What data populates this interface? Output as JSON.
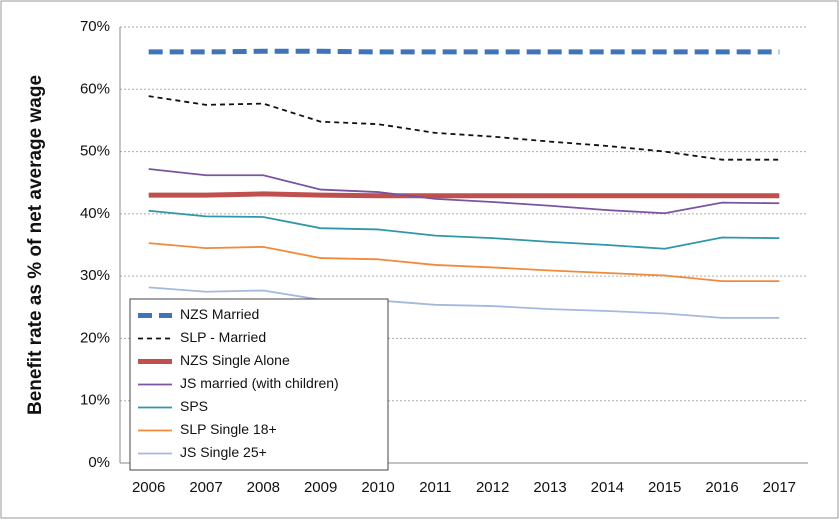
{
  "chart_data": {
    "type": "line",
    "y_label": "Benefit rate as % of net average wage",
    "categories": [
      "2006",
      "2007",
      "2008",
      "2009",
      "2010",
      "2011",
      "2012",
      "2013",
      "2014",
      "2015",
      "2016",
      "2017"
    ],
    "ylim": [
      0,
      70
    ],
    "yticks": [
      {
        "value": 0,
        "label": "0%"
      },
      {
        "value": 10,
        "label": "10%"
      },
      {
        "value": 20,
        "label": "20%"
      },
      {
        "value": 30,
        "label": "30%"
      },
      {
        "value": 40,
        "label": "40%"
      },
      {
        "value": 50,
        "label": "50%"
      },
      {
        "value": 60,
        "label": "60%"
      },
      {
        "value": 70,
        "label": "70%"
      }
    ],
    "grid": true,
    "legend": "lower left",
    "series": [
      {
        "name": "NZS Married",
        "color": "#3f74b8",
        "style": "dashed",
        "line_width": 5,
        "values": [
          66,
          66,
          66.1,
          66.1,
          66,
          66,
          66,
          66,
          66,
          66,
          66,
          66
        ]
      },
      {
        "name": "SLP - Married",
        "color": "#111111",
        "style": "dashed",
        "line_width": 1.8,
        "values": [
          58.9,
          57.5,
          57.7,
          54.8,
          54.4,
          53,
          52.4,
          51.6,
          50.9,
          50,
          48.7,
          48.7
        ]
      },
      {
        "name": "NZS Single Alone",
        "color": "#c0504d",
        "style": "solid",
        "line_width": 5,
        "values": [
          43,
          43,
          43.2,
          43,
          42.9,
          42.9,
          42.9,
          42.9,
          42.9,
          42.9,
          42.9,
          42.9
        ]
      },
      {
        "name": "JS married (with children)",
        "color": "#7a54a0",
        "style": "solid",
        "line_width": 1.8,
        "values": [
          47.2,
          46.2,
          46.2,
          43.9,
          43.5,
          42.4,
          41.9,
          41.3,
          40.6,
          40.1,
          41.8,
          41.7
        ]
      },
      {
        "name": "SPS",
        "color": "#2f97a8",
        "style": "solid",
        "line_width": 1.8,
        "values": [
          40.5,
          39.6,
          39.5,
          37.7,
          37.5,
          36.5,
          36.1,
          35.5,
          35,
          34.4,
          36.2,
          36.1
        ]
      },
      {
        "name": "SLP Single 18+",
        "color": "#f08a3c",
        "style": "solid",
        "line_width": 1.8,
        "values": [
          35.3,
          34.5,
          34.7,
          32.9,
          32.7,
          31.8,
          31.4,
          30.9,
          30.5,
          30.1,
          29.2,
          29.2
        ]
      },
      {
        "name": "JS Single 25+",
        "color": "#a4b9e0",
        "style": "solid",
        "line_width": 1.8,
        "values": [
          28.2,
          27.5,
          27.7,
          26.2,
          26.1,
          25.4,
          25.2,
          24.7,
          24.4,
          24,
          23.3,
          23.3
        ]
      }
    ]
  }
}
